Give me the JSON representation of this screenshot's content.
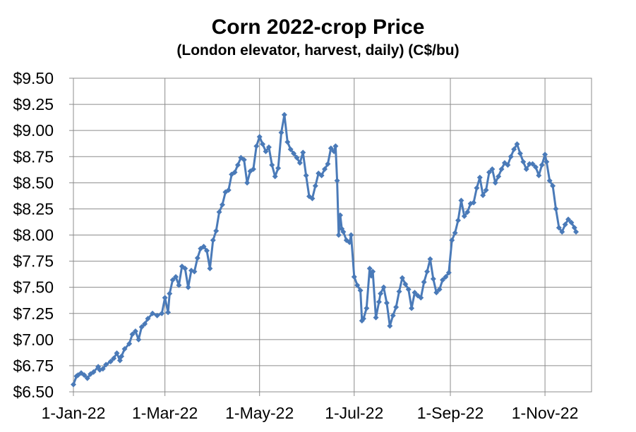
{
  "chart_data": {
    "type": "line",
    "title": "Corn 2022-crop Price",
    "subtitle": "(London elevator, harvest, daily) (C$/bu)",
    "xlabel": "",
    "ylabel": "",
    "x_tick_labels": [
      "1-Jan-22",
      "1-Mar-22",
      "1-May-22",
      "1-Jul-22",
      "1-Sep-22",
      "1-Nov-22"
    ],
    "x_tick_dates": [
      "2022-01-01",
      "2022-03-01",
      "2022-05-01",
      "2022-07-01",
      "2022-09-01",
      "2022-11-01"
    ],
    "xlim": [
      "2022-01-01",
      "2022-12-01"
    ],
    "y_tick_labels": [
      "$6.50",
      "$6.75",
      "$7.00",
      "$7.25",
      "$7.50",
      "$7.75",
      "$8.00",
      "$8.25",
      "$8.50",
      "$8.75",
      "$9.00",
      "$9.25",
      "$9.50"
    ],
    "y_tick_values": [
      6.5,
      6.75,
      7.0,
      7.25,
      7.5,
      7.75,
      8.0,
      8.25,
      8.5,
      8.75,
      9.0,
      9.25,
      9.5
    ],
    "ylim": [
      6.5,
      9.5
    ],
    "grid": true,
    "legend": "none",
    "series_color": "#4a7ab8",
    "series": [
      {
        "x": [
          "2022-01-01",
          "2022-01-03",
          "2022-01-04",
          "2022-01-06",
          "2022-01-08",
          "2022-01-10",
          "2022-01-12",
          "2022-01-14",
          "2022-01-17",
          "2022-01-18",
          "2022-01-20",
          "2022-01-22",
          "2022-01-25",
          "2022-01-27",
          "2022-01-29",
          "2022-01-31",
          "2022-02-01",
          "2022-02-03",
          "2022-02-06",
          "2022-02-08",
          "2022-02-10",
          "2022-02-12",
          "2022-02-14",
          "2022-02-16",
          "2022-02-18",
          "2022-02-21",
          "2022-02-24",
          "2022-02-27",
          "2022-03-01",
          "2022-03-03",
          "2022-03-04",
          "2022-03-06",
          "2022-03-08",
          "2022-03-10",
          "2022-03-12",
          "2022-03-14",
          "2022-03-16",
          "2022-03-18",
          "2022-03-20",
          "2022-03-22",
          "2022-03-24",
          "2022-03-26",
          "2022-03-28",
          "2022-03-30",
          "2022-04-01",
          "2022-04-03",
          "2022-04-05",
          "2022-04-07",
          "2022-04-09",
          "2022-04-11",
          "2022-04-13",
          "2022-04-15",
          "2022-04-17",
          "2022-04-19",
          "2022-04-21",
          "2022-04-23",
          "2022-04-25",
          "2022-04-27",
          "2022-04-29",
          "2022-05-01",
          "2022-05-03",
          "2022-05-05",
          "2022-05-07",
          "2022-05-09",
          "2022-05-11",
          "2022-05-13",
          "2022-05-15",
          "2022-05-17",
          "2022-05-19",
          "2022-05-21",
          "2022-05-23",
          "2022-05-25",
          "2022-05-27",
          "2022-05-29",
          "2022-05-31",
          "2022-06-02",
          "2022-06-04",
          "2022-06-06",
          "2022-06-08",
          "2022-06-10",
          "2022-06-12",
          "2022-06-14",
          "2022-06-16",
          "2022-06-18",
          "2022-06-19",
          "2022-06-20",
          "2022-06-21",
          "2022-06-22",
          "2022-06-23",
          "2022-06-24",
          "2022-06-26",
          "2022-06-28",
          "2022-06-29",
          "2022-07-01",
          "2022-07-03",
          "2022-07-05",
          "2022-07-06",
          "2022-07-07",
          "2022-07-09",
          "2022-07-11",
          "2022-07-12",
          "2022-07-13",
          "2022-07-15",
          "2022-07-17",
          "2022-07-18",
          "2022-07-20",
          "2022-07-22",
          "2022-07-24",
          "2022-07-26",
          "2022-07-28",
          "2022-07-30",
          "2022-08-01",
          "2022-08-03",
          "2022-08-05",
          "2022-08-07",
          "2022-08-09",
          "2022-08-11",
          "2022-08-13",
          "2022-08-15",
          "2022-08-17",
          "2022-08-19",
          "2022-08-21",
          "2022-08-23",
          "2022-08-25",
          "2022-08-27",
          "2022-08-29",
          "2022-08-31",
          "2022-09-02",
          "2022-09-04",
          "2022-09-06",
          "2022-09-08",
          "2022-09-10",
          "2022-09-12",
          "2022-09-14",
          "2022-09-16",
          "2022-09-18",
          "2022-09-20",
          "2022-09-22",
          "2022-09-24",
          "2022-09-26",
          "2022-09-28",
          "2022-09-30",
          "2022-10-02",
          "2022-10-04",
          "2022-10-06",
          "2022-10-08",
          "2022-10-10",
          "2022-10-12",
          "2022-10-14",
          "2022-10-16",
          "2022-10-18",
          "2022-10-20",
          "2022-10-22",
          "2022-10-24",
          "2022-10-26",
          "2022-10-28",
          "2022-10-30",
          "2022-11-01",
          "2022-11-02",
          "2022-11-04",
          "2022-11-06",
          "2022-11-08",
          "2022-11-10",
          "2022-11-12",
          "2022-11-14",
          "2022-11-16",
          "2022-11-18",
          "2022-11-20",
          "2022-11-21"
        ],
        "y": [
          6.57,
          6.65,
          6.66,
          6.68,
          6.66,
          6.63,
          6.67,
          6.69,
          6.74,
          6.71,
          6.72,
          6.76,
          6.79,
          6.82,
          6.87,
          6.8,
          6.84,
          6.91,
          6.96,
          7.05,
          7.08,
          7.0,
          7.12,
          7.15,
          7.2,
          7.25,
          7.23,
          7.25,
          7.4,
          7.26,
          7.44,
          7.57,
          7.6,
          7.52,
          7.7,
          7.68,
          7.5,
          7.66,
          7.65,
          7.78,
          7.87,
          7.89,
          7.85,
          7.68,
          7.95,
          8.04,
          8.22,
          8.29,
          8.41,
          8.43,
          8.58,
          8.6,
          8.67,
          8.74,
          8.72,
          8.5,
          8.61,
          8.63,
          8.85,
          8.94,
          8.87,
          8.8,
          8.84,
          8.67,
          8.56,
          8.64,
          8.98,
          9.15,
          8.89,
          8.82,
          8.78,
          8.74,
          8.69,
          8.79,
          8.57,
          8.37,
          8.35,
          8.47,
          8.59,
          8.57,
          8.63,
          8.68,
          8.83,
          8.8,
          8.85,
          8.52,
          8.0,
          8.19,
          8.06,
          8.03,
          7.95,
          7.93,
          8.0,
          7.6,
          7.52,
          7.47,
          7.18,
          7.2,
          7.3,
          7.68,
          7.61,
          7.65,
          7.21,
          7.36,
          7.44,
          7.5,
          7.35,
          7.13,
          7.23,
          7.31,
          7.46,
          7.59,
          7.53,
          7.48,
          7.3,
          7.45,
          7.42,
          7.4,
          7.55,
          7.65,
          7.77,
          7.58,
          7.45,
          7.48,
          7.57,
          7.6,
          7.64,
          7.95,
          8.02,
          8.14,
          8.33,
          8.18,
          8.22,
          8.3,
          8.31,
          8.45,
          8.55,
          8.38,
          8.43,
          8.6,
          8.63,
          8.5,
          8.56,
          8.63,
          8.69,
          8.67,
          8.75,
          8.82,
          8.87,
          8.78,
          8.7,
          8.63,
          8.68,
          8.68,
          8.65,
          8.57,
          8.67,
          8.77,
          8.7,
          8.52,
          8.47,
          8.25,
          8.07,
          8.03,
          8.1,
          8.15,
          8.12,
          8.07,
          8.03
        ]
      }
    ]
  }
}
